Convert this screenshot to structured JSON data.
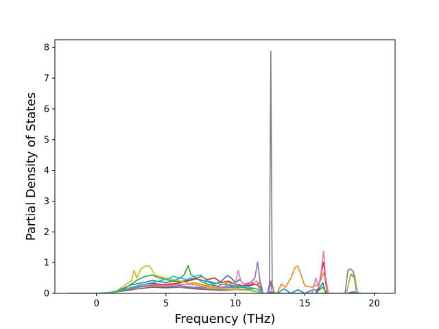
{
  "chart_data": {
    "type": "line",
    "title": "",
    "xlabel": "Frequency (THz)",
    "ylabel": "Partial Density of States",
    "xlim": [
      -3.0,
      21.5
    ],
    "ylim": [
      0,
      8.25
    ],
    "xticks": [
      0,
      5,
      10,
      15,
      20
    ],
    "yticks": [
      0,
      1,
      2,
      3,
      4,
      5,
      6,
      7,
      8
    ],
    "grid": false,
    "legend": "none",
    "series": [
      {
        "color": "#1f77b4",
        "x": [
          -2.0,
          0.0,
          0.8,
          1.5,
          2.0,
          2.5,
          3.0,
          3.5,
          4.0,
          4.5,
          5.0,
          5.5,
          6.0,
          6.5,
          7.0,
          7.5,
          8.0,
          8.5,
          9.0,
          9.4,
          9.7,
          10.0,
          10.3,
          10.6,
          11.0,
          11.5,
          11.8,
          12.0,
          12.3,
          12.6,
          13.0,
          13.5,
          14.0,
          14.5,
          15.0,
          15.5,
          16.0,
          16.3,
          16.5,
          17.0,
          18.0,
          18.5,
          19.0,
          20.3
        ],
        "y": [
          0,
          0,
          0.02,
          0.08,
          0.18,
          0.28,
          0.32,
          0.36,
          0.42,
          0.38,
          0.35,
          0.4,
          0.38,
          0.42,
          0.48,
          0.44,
          0.38,
          0.3,
          0.4,
          0.58,
          0.5,
          0.35,
          0.45,
          0.3,
          0.32,
          0.28,
          0.35,
          0,
          0,
          0.05,
          0,
          0.15,
          0,
          0.12,
          0,
          0.1,
          0.12,
          0.35,
          0,
          0,
          0,
          0.05,
          0,
          0
        ]
      },
      {
        "color": "#ff7f0e",
        "x": [
          -2.0,
          0.0,
          1.0,
          2.0,
          2.5,
          3.0,
          3.5,
          4.0,
          4.5,
          5.0,
          5.5,
          6.0,
          6.5,
          7.0,
          7.5,
          8.0,
          8.5,
          9.0,
          9.5,
          10.0,
          10.5,
          11.0,
          11.5,
          11.8,
          12.0,
          13.0,
          13.3,
          13.6,
          14.0,
          14.3,
          14.5,
          14.8,
          15.0,
          15.5,
          16.0,
          16.2,
          16.4,
          16.6,
          17.0,
          20.3
        ],
        "y": [
          0,
          0,
          0.03,
          0.12,
          0.2,
          0.25,
          0.3,
          0.35,
          0.28,
          0.3,
          0.32,
          0.28,
          0.3,
          0.35,
          0.3,
          0.25,
          0.2,
          0.28,
          0.35,
          0.3,
          0.25,
          0.3,
          0.4,
          0.3,
          0,
          0,
          0.3,
          0.2,
          0.5,
          0.85,
          0.88,
          0.5,
          0.25,
          0.2,
          0.3,
          0.5,
          0.7,
          0,
          0,
          0
        ]
      },
      {
        "color": "#2ca02c",
        "x": [
          -2.0,
          0.0,
          1.0,
          2.0,
          2.5,
          3.0,
          3.5,
          4.0,
          4.5,
          5.0,
          5.5,
          6.0,
          6.3,
          6.6,
          6.8,
          7.0,
          7.5,
          8.0,
          8.5,
          9.0,
          9.5,
          10.0,
          10.5,
          11.0,
          11.5,
          11.8,
          12.0,
          15.8,
          16.0,
          16.3,
          16.6,
          18.0,
          18.3,
          18.6,
          18.8,
          20.3
        ],
        "y": [
          0,
          0,
          0.03,
          0.15,
          0.3,
          0.45,
          0.55,
          0.6,
          0.5,
          0.45,
          0.4,
          0.5,
          0.6,
          0.9,
          0.6,
          0.55,
          0.4,
          0.3,
          0.25,
          0.2,
          0.25,
          0.2,
          0.2,
          0.15,
          0.15,
          0.1,
          0,
          0,
          0.1,
          0.2,
          0,
          0,
          0.62,
          0.55,
          0,
          0
        ]
      },
      {
        "color": "#d62728",
        "x": [
          -2.0,
          0.0,
          1.0,
          2.0,
          2.5,
          3.0,
          3.5,
          4.0,
          4.5,
          5.0,
          5.5,
          6.0,
          6.5,
          7.0,
          7.5,
          8.0,
          8.5,
          9.0,
          9.5,
          10.0,
          10.5,
          11.0,
          11.5,
          11.8,
          12.0,
          15.8,
          16.0,
          16.2,
          16.35,
          16.5,
          16.7,
          20.3
        ],
        "y": [
          0,
          0,
          0.02,
          0.1,
          0.18,
          0.25,
          0.3,
          0.32,
          0.3,
          0.28,
          0.3,
          0.35,
          0.4,
          0.45,
          0.55,
          0.45,
          0.5,
          0.35,
          0.4,
          0.3,
          0.25,
          0.25,
          0.3,
          0.2,
          0,
          0,
          0.2,
          0.7,
          1.02,
          0.4,
          0,
          0
        ]
      },
      {
        "color": "#9467bd",
        "x": [
          -2.0,
          0.0,
          1.0,
          2.0,
          3.0,
          4.0,
          5.0,
          6.0,
          7.0,
          8.0,
          9.0,
          10.0,
          10.5,
          11.0,
          11.4,
          11.6,
          11.8,
          12.0,
          12.4,
          12.55,
          12.65,
          12.8,
          17.9,
          18.1,
          18.3,
          18.5,
          18.7,
          18.9,
          20.3
        ],
        "y": [
          0,
          0,
          0.02,
          0.1,
          0.2,
          0.25,
          0.22,
          0.25,
          0.2,
          0.2,
          0.18,
          0.2,
          0.25,
          0.3,
          0.5,
          1.02,
          0.3,
          0,
          0,
          0.4,
          0,
          0,
          0,
          0.75,
          0.8,
          0.7,
          0.1,
          0,
          0
        ]
      },
      {
        "color": "#8c564b",
        "x": [
          -2.0,
          0.0,
          1.0,
          2.0,
          3.0,
          4.0,
          5.0,
          6.0,
          7.0,
          8.0,
          9.0,
          10.0,
          11.0,
          12.0,
          20.3
        ],
        "y": [
          0,
          0,
          0.02,
          0.08,
          0.15,
          0.2,
          0.18,
          0.2,
          0.15,
          0.12,
          0.1,
          0.12,
          0.1,
          0,
          0
        ]
      },
      {
        "color": "#e377c2",
        "x": [
          -2.0,
          0.0,
          1.0,
          2.0,
          3.0,
          4.0,
          5.0,
          6.0,
          7.0,
          8.0,
          9.0,
          10.0,
          10.2,
          10.4,
          10.6,
          11.0,
          11.5,
          12.0,
          15.5,
          15.8,
          16.0,
          16.2,
          16.35,
          16.5,
          16.7,
          20.3
        ],
        "y": [
          0,
          0,
          0.02,
          0.1,
          0.22,
          0.28,
          0.25,
          0.3,
          0.28,
          0.22,
          0.2,
          0.35,
          0.75,
          0.4,
          0.3,
          0.35,
          0.3,
          0,
          0,
          0.5,
          0.2,
          0.8,
          1.37,
          0.5,
          0,
          0
        ]
      },
      {
        "color": "#7f7f7f",
        "x": [
          -2.0,
          0.0,
          1.0,
          2.0,
          3.0,
          4.0,
          5.0,
          6.0,
          7.0,
          8.0,
          9.0,
          10.0,
          11.0,
          12.0,
          12.3,
          12.45,
          12.55,
          12.65,
          12.8,
          20.3
        ],
        "y": [
          0,
          0,
          0.02,
          0.1,
          0.2,
          0.25,
          0.22,
          0.2,
          0.18,
          0.15,
          0.12,
          0.15,
          0.12,
          0,
          0,
          0.3,
          7.88,
          0.3,
          0,
          0
        ]
      },
      {
        "color": "#bcbd22",
        "x": [
          -2.0,
          0.0,
          1.0,
          1.5,
          2.0,
          2.5,
          2.7,
          2.9,
          3.2,
          3.5,
          3.8,
          4.0,
          4.2,
          4.5,
          5.0,
          5.5,
          6.0,
          6.5,
          7.0,
          7.5,
          8.0,
          9.0,
          10.0,
          11.0,
          12.0,
          18.0,
          18.3,
          18.6,
          18.8,
          20.3
        ],
        "y": [
          0,
          0,
          0.03,
          0.1,
          0.25,
          0.4,
          0.75,
          0.5,
          0.8,
          0.88,
          0.9,
          0.75,
          0.6,
          0.55,
          0.5,
          0.45,
          0.4,
          0.35,
          0.3,
          0.25,
          0.2,
          0.15,
          0.12,
          0.1,
          0,
          0,
          0.6,
          0.5,
          0,
          0
        ]
      },
      {
        "color": "#17becf",
        "x": [
          -2.0,
          0.0,
          1.0,
          2.0,
          3.0,
          4.0,
          5.0,
          5.5,
          6.0,
          6.5,
          7.0,
          7.5,
          8.0,
          9.0,
          10.0,
          11.0,
          11.5,
          12.0,
          20.3
        ],
        "y": [
          0,
          0,
          0.02,
          0.12,
          0.25,
          0.35,
          0.45,
          0.55,
          0.5,
          0.45,
          0.55,
          0.6,
          0.4,
          0.3,
          0.25,
          0.2,
          0.15,
          0,
          0
        ]
      }
    ]
  }
}
